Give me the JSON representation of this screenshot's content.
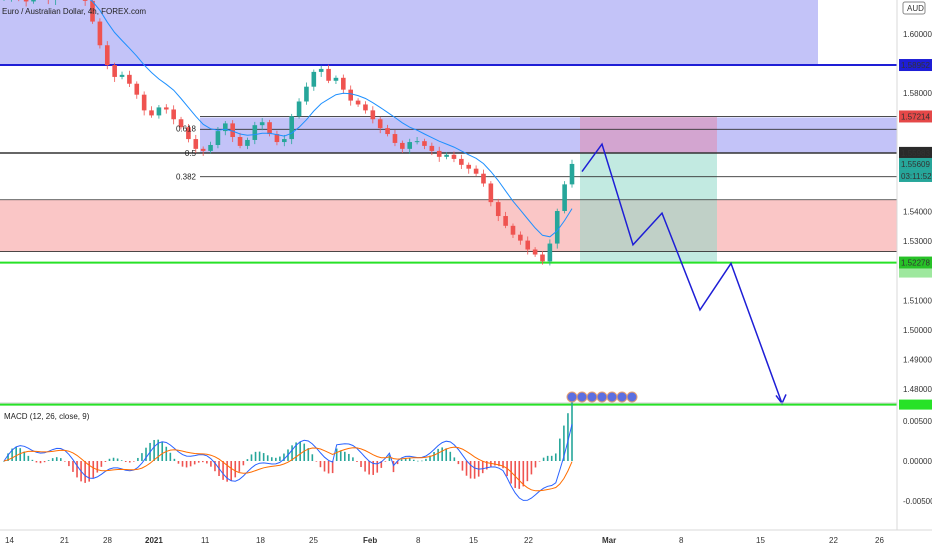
{
  "header": {
    "symbol_title": "Euro / Australian Dollar, 4h, FOREX.com",
    "currency": "AUD"
  },
  "price_axis": {
    "labels": [
      "1.60000",
      "1.58000",
      "1.54000",
      "1.53000",
      "1.51000",
      "1.50000",
      "1.49000",
      "1.48000"
    ]
  },
  "price_tags": [
    {
      "label": "1.58952",
      "color": "#1e1ed6"
    },
    {
      "label": "1.57214",
      "color": "#e54848"
    },
    {
      "label": "1.55983",
      "color": "#2a2a2a"
    },
    {
      "label": "1.55609",
      "color": "#26a69a"
    },
    {
      "label": "03:11:52",
      "color": "#26a69a"
    },
    {
      "label": "1.52278",
      "color": "#27c227"
    }
  ],
  "fib_labels": [
    {
      "label": "0.618",
      "price": 1.568
    },
    {
      "label": "0.5",
      "price": 1.5598
    },
    {
      "label": "0.382",
      "price": 1.5518
    }
  ],
  "time_axis": {
    "labels": [
      "14",
      "21",
      "28",
      "2021",
      "11",
      "18",
      "25",
      "Feb",
      "8",
      "15",
      "22",
      "Mar",
      "8",
      "15",
      "22",
      "26"
    ]
  },
  "macd": {
    "title": "MACD (12, 26, close, 9)",
    "axis_labels": [
      "0.00500",
      "0.00000",
      "-0.00500"
    ]
  },
  "colors": {
    "bull_candle": "#26a69a",
    "bear_candle": "#ef5350",
    "ma_line": "#1e90ff",
    "zone_blue": "#a9a9f5",
    "zone_red": "#f8b3b3",
    "level_blue": "#1e1ed6",
    "level_green": "#27e227",
    "projection": "#1e1ed6",
    "macd_line": "#2962ff",
    "signal_line": "#ff6d00"
  },
  "chart_data": {
    "type": "candlestick",
    "ylim": [
      1.4725,
      1.6165
    ],
    "close_series": [
      1.612,
      1.6135,
      1.6125,
      1.611,
      1.614,
      1.613,
      1.6115,
      1.6125,
      1.614,
      1.6138,
      1.6142,
      1.6112,
      1.6042,
      1.5962,
      1.5895,
      1.5855,
      1.5862,
      1.5832,
      1.5795,
      1.5742,
      1.5725,
      1.5752,
      1.5745,
      1.5712,
      1.5685,
      1.5645,
      1.5612,
      1.5605,
      1.5625,
      1.5672,
      1.5698,
      1.5652,
      1.5622,
      1.5642,
      1.5692,
      1.5702,
      1.5662,
      1.5635,
      1.5645,
      1.5722,
      1.5772,
      1.5822,
      1.5872,
      1.5882,
      1.5842,
      1.5852,
      1.5812,
      1.5775,
      1.5762,
      1.5742,
      1.5712,
      1.5682,
      1.5662,
      1.5632,
      1.5612,
      1.5635,
      1.5638,
      1.5622,
      1.5605,
      1.5585,
      1.5592,
      1.5578,
      1.5558,
      1.5545,
      1.5528,
      1.5495,
      1.5432,
      1.5385,
      1.5352,
      1.5322,
      1.5302,
      1.5272,
      1.5255,
      1.5232,
      1.5292,
      1.5402,
      1.5492,
      1.5561
    ],
    "ma_series": [
      1.6125,
      1.6128,
      1.613,
      1.6125,
      1.6128,
      1.6128,
      1.6125,
      1.6125,
      1.6128,
      1.613,
      1.6132,
      1.6128,
      1.611,
      1.608,
      1.604,
      1.6005,
      1.5978,
      1.5952,
      1.5925,
      1.5895,
      1.587,
      1.5848,
      1.583,
      1.581,
      1.5782,
      1.5752,
      1.5722,
      1.5695,
      1.568,
      1.5675,
      1.5678,
      1.5672,
      1.5662,
      1.5658,
      1.566,
      1.5665,
      1.5665,
      1.566,
      1.5655,
      1.5665,
      1.5685,
      1.571,
      1.574,
      1.5765,
      1.578,
      1.5795,
      1.58,
      1.5798,
      1.5792,
      1.5782,
      1.5768,
      1.5752,
      1.5735,
      1.5718,
      1.57,
      1.5685,
      1.5675,
      1.5662,
      1.565,
      1.5638,
      1.5628,
      1.5618,
      1.5605,
      1.5592,
      1.558,
      1.5562,
      1.5535,
      1.5505,
      1.547,
      1.5435,
      1.5405,
      1.5375,
      1.5345,
      1.532,
      1.5315,
      1.5335,
      1.537,
      1.541
    ],
    "levels": [
      {
        "price": 1.58952
      },
      {
        "price": 1.57214
      },
      {
        "price": 1.55983
      },
      {
        "price": 1.55609
      },
      {
        "price": 1.54403
      },
      {
        "price": 1.52278
      },
      {
        "price": 1.4748
      }
    ],
    "projection_path": [
      {
        "date": "Feb 27",
        "price": 1.5535
      },
      {
        "date": "Mar 1",
        "price": 1.5628
      },
      {
        "date": "Mar 4",
        "price": 1.5288
      },
      {
        "date": "Mar 7",
        "price": 1.5395
      },
      {
        "date": "Mar 10",
        "price": 1.5068
      },
      {
        "date": "Mar 13",
        "price": 1.5225
      },
      {
        "date": "Mar 18",
        "price": 1.4752
      }
    ],
    "macd_range": [
      -0.0075,
      0.007
    ]
  }
}
